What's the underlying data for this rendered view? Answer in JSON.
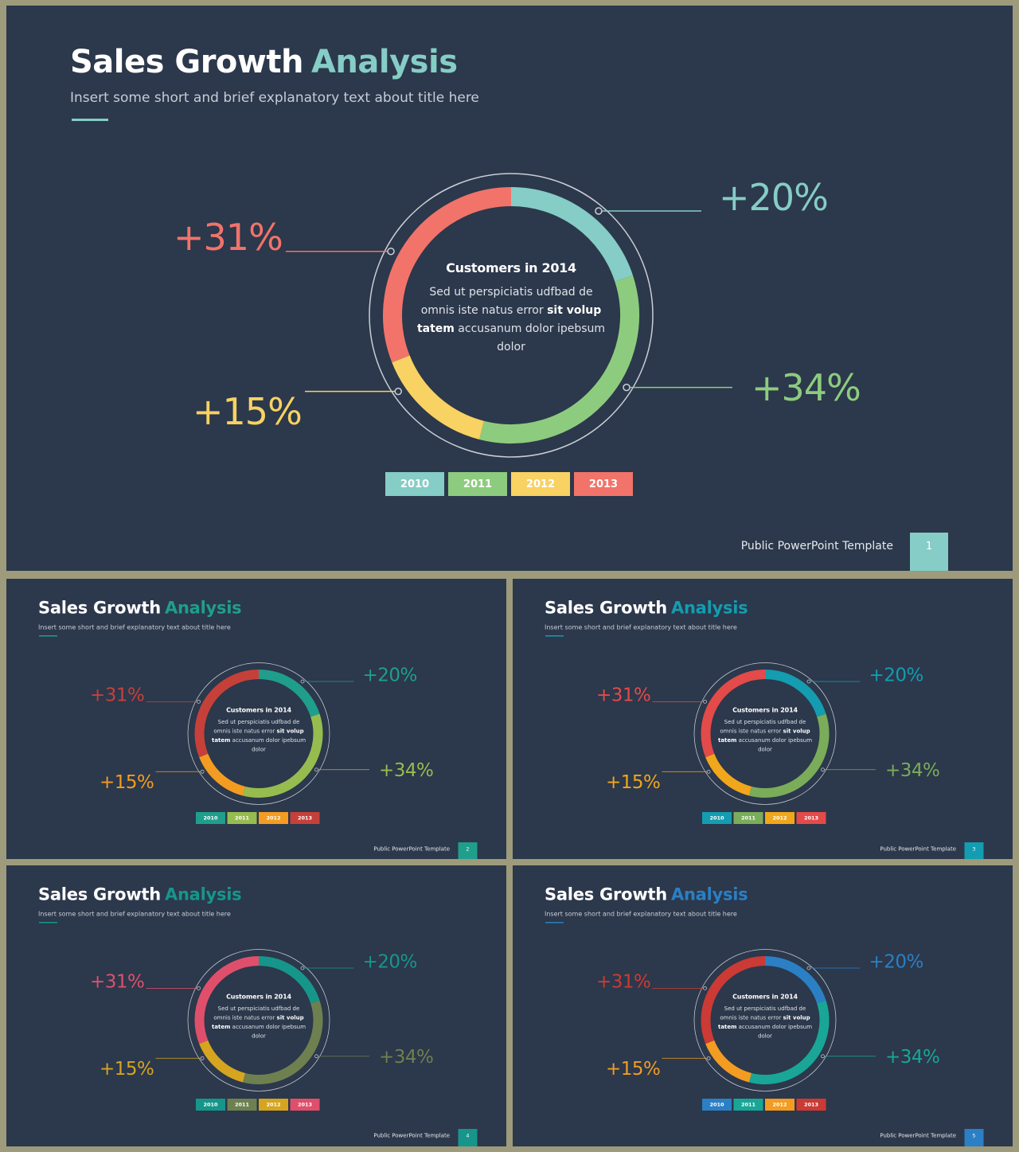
{
  "slides": [
    {
      "title_main": "Sales Growth",
      "title_highlight": "Analysis",
      "subtitle": "Insert some short and brief explanatory text about title here",
      "center_title": "Customers in 2014",
      "center_body_1": "Sed ut perspiciatis udfbad de omnis iste natus error ",
      "center_body_bold_1": "sit volup tatem",
      "center_body_2": " accusanum dolor ipebsum dolor",
      "footer": "Public PowerPoint Template",
      "page": "1",
      "colors": {
        "accent": "#85cdc6",
        "c2010": "#85cdc6",
        "c2011": "#8dcc7e",
        "c2012": "#f8d262",
        "c2013": "#f2736a"
      }
    },
    {
      "title_main": "Sales Growth",
      "title_highlight": "Analysis",
      "subtitle": "Insert some short and brief explanatory text about title here",
      "center_title": "Customers in 2014",
      "center_body_1": "Sed ut perspiciatis udfbad de omnis iste natus error ",
      "center_body_bold_1": "sit volup tatem",
      "center_body_2": " accusanum dolor ipebsum dolor",
      "footer": "Public PowerPoint Template",
      "page": "2",
      "colors": {
        "accent": "#1f9e8c",
        "c2010": "#1f9e8c",
        "c2011": "#96bc4f",
        "c2012": "#f39c21",
        "c2013": "#c6403a"
      }
    },
    {
      "title_main": "Sales Growth",
      "title_highlight": "Analysis",
      "subtitle": "Insert some short and brief explanatory text about title here",
      "center_title": "Customers in 2014",
      "center_body_1": "Sed ut perspiciatis udfbad de omnis iste natus error ",
      "center_body_bold_1": "sit volup tatem",
      "center_body_2": " accusanum dolor ipebsum dolor",
      "footer": "Public PowerPoint Template",
      "page": "3",
      "colors": {
        "accent": "#149cb0",
        "c2010": "#149cb0",
        "c2011": "#7aac5a",
        "c2012": "#f1a71b",
        "c2013": "#e34a4a"
      }
    },
    {
      "title_main": "Sales Growth",
      "title_highlight": "Analysis",
      "subtitle": "Insert some short and brief explanatory text about title here",
      "center_title": "Customers in 2014",
      "center_body_1": "Sed ut perspiciatis udfbad de omnis iste natus error ",
      "center_body_bold_1": "sit volup tatem",
      "center_body_2": " accusanum dolor ipebsum dolor",
      "footer": "Public PowerPoint Template",
      "page": "4",
      "colors": {
        "accent": "#16968a",
        "c2010": "#16968a",
        "c2011": "#6e8050",
        "c2012": "#d6a51f",
        "c2013": "#df4f6b"
      }
    },
    {
      "title_main": "Sales Growth",
      "title_highlight": "Analysis",
      "subtitle": "Insert some short and brief explanatory text about title here",
      "center_title": "Customers in 2014",
      "center_body_1": "Sed ut perspiciatis udfbad de omnis iste natus error ",
      "center_body_bold_1": "sit volup tatem",
      "center_body_2": " accusanum dolor ipebsum dolor",
      "footer": "Public PowerPoint Template",
      "page": "5",
      "colors": {
        "accent": "#2b7fc4",
        "c2010": "#2b7fc4",
        "c2011": "#19a697",
        "c2012": "#f39c21",
        "c2013": "#cc3a35"
      }
    }
  ],
  "chart_data": {
    "type": "pie",
    "variant": "donut",
    "categories": [
      "2010",
      "2011",
      "2012",
      "2013"
    ],
    "values": [
      20,
      34,
      15,
      31
    ],
    "labels": [
      "+20%",
      "+34%",
      "+15%",
      "+31%"
    ],
    "legend": [
      "2010",
      "2011",
      "2012",
      "2013"
    ],
    "legend_placement": "bottom"
  }
}
